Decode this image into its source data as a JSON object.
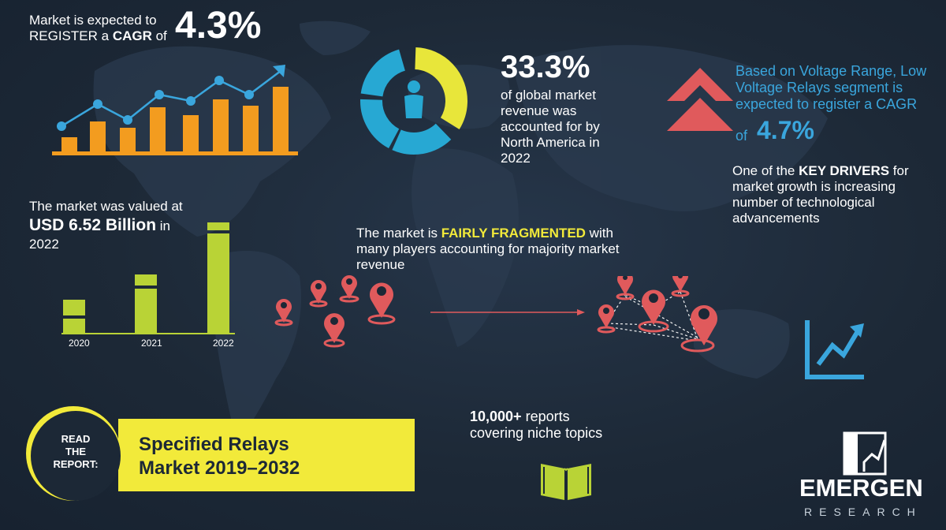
{
  "cagr_block": {
    "line1": "Market is expected to",
    "line2_prefix": "REGISTER a ",
    "line2_bold": "CAGR",
    "line2_suffix": " of",
    "value": "4.3%"
  },
  "market_value": {
    "line1": "The market was valued at",
    "amount": "USD  6.52 Billion",
    "suffix": " in",
    "year": "2022"
  },
  "bar_chart": {
    "years": [
      "2020",
      "2021",
      "2022"
    ],
    "relative_height": [
      0.3,
      0.52,
      1.0
    ]
  },
  "north_america": {
    "value": "33.3%",
    "lines": [
      "of global market",
      "revenue was",
      "accounted for by",
      "North America in",
      "2022"
    ],
    "donut_share": 0.333
  },
  "voltage": {
    "lines": [
      "Based on Voltage Range, Low",
      "Voltage Relays segment is",
      "expected to register a CAGR"
    ],
    "of": "of",
    "value": "4.7%"
  },
  "drivers": {
    "prefix": "One of the ",
    "bold": "KEY DRIVERS",
    "suffix": " for",
    "lines": [
      "market growth is increasing",
      "number of technological",
      "advancements"
    ]
  },
  "fragmented": {
    "prefix": "The market is ",
    "highlight": "FAIRLY FRAGMENTED",
    "suffix": " with",
    "lines": [
      "many players accounting for majority market",
      "revenue"
    ]
  },
  "read_report": {
    "badge_lines": [
      "READ",
      "THE",
      "REPORT:"
    ],
    "title_lines": [
      "Specified Relays",
      "Market 2019–2032"
    ]
  },
  "reports": {
    "bold": "10,000+",
    "suffix": " reports",
    "line2": "covering niche topics"
  },
  "brand": {
    "name": "EMERGEN",
    "sub": "RESEARCH"
  },
  "colors": {
    "orange": "#f39c1f",
    "accent_blue": "#3aa6dd",
    "yellow": "#f2ea3a",
    "lime": "#b9d336",
    "red": "#e05a5c",
    "background": "#1c2836"
  }
}
